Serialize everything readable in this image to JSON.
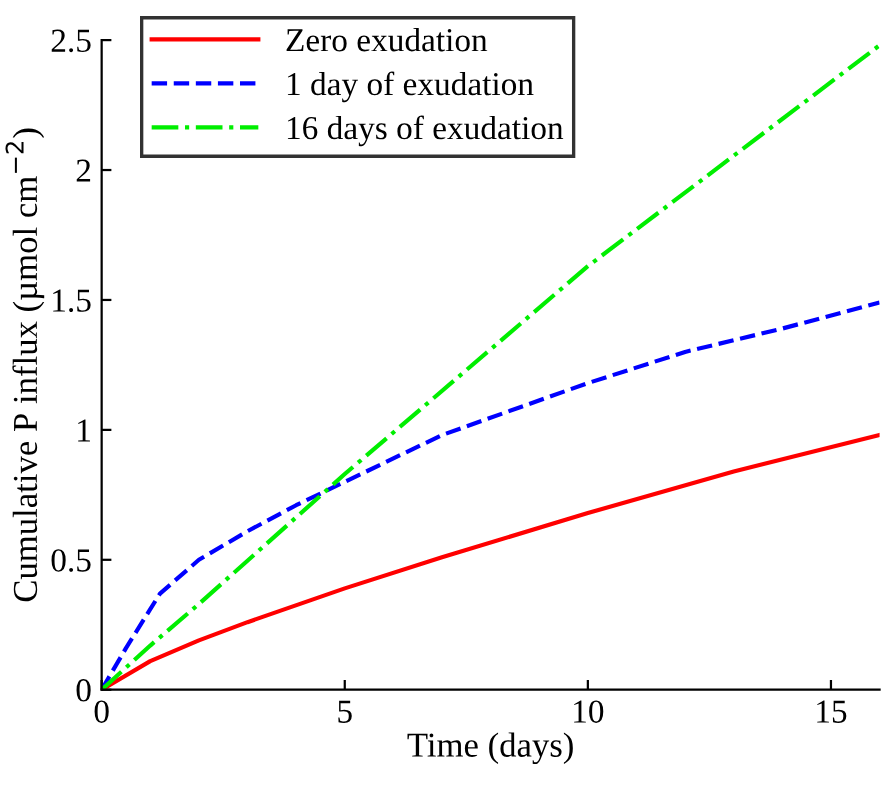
{
  "chart_data": {
    "type": "line",
    "xlabel": "Time (days)",
    "ylabel": "Cumulative P influx (µmol cm$^{−2}$)",
    "xlim": [
      0,
      16
    ],
    "ylim": [
      0,
      2.5
    ],
    "xticks": [
      0,
      5,
      10,
      15
    ],
    "yticks": [
      0,
      0.5,
      1,
      1.5,
      2,
      2.5
    ],
    "grid": false,
    "legend": "top left",
    "marker": "none",
    "series": [
      {
        "name": "Zero exudation",
        "color": "#ff0000",
        "line_style": "solid",
        "x": [
          0,
          1,
          2,
          3,
          5,
          7,
          10,
          13,
          16
        ],
        "values": [
          0,
          0.11,
          0.19,
          0.26,
          0.39,
          0.51,
          0.68,
          0.84,
          0.98
        ]
      },
      {
        "name": "1 day of exudation",
        "color": "#0000ff",
        "line_style": "dashed",
        "x": [
          0,
          0.5,
          1,
          1.2,
          2,
          3,
          4,
          5,
          7,
          10,
          12,
          14,
          16
        ],
        "values": [
          0,
          0.16,
          0.31,
          0.37,
          0.5,
          0.61,
          0.71,
          0.8,
          0.98,
          1.18,
          1.3,
          1.39,
          1.49
        ]
      },
      {
        "name": "16 days of exudation",
        "color": "#00ee00",
        "line_style": "dashdot",
        "x": [
          0,
          1,
          2,
          5,
          10,
          16
        ],
        "values": [
          0,
          0.17,
          0.33,
          0.83,
          1.63,
          2.48
        ]
      }
    ]
  }
}
